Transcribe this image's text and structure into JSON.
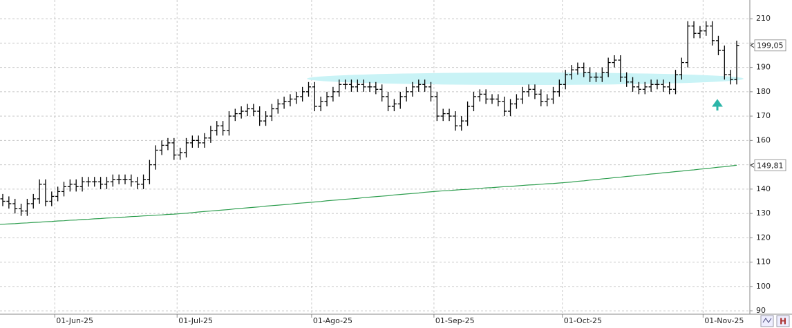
{
  "chart_data": {
    "type": "ohlc",
    "categories": [
      null,
      null,
      null,
      null,
      null,
      null,
      null,
      null,
      null,
      "01-Jun-25",
      null,
      null,
      null,
      null,
      null,
      null,
      null,
      null,
      null,
      null,
      null,
      null,
      null,
      null,
      null,
      null,
      null,
      null,
      null,
      "01-Jul-25",
      null,
      null,
      null,
      null,
      null,
      null,
      null,
      null,
      null,
      null,
      null,
      null,
      null,
      null,
      null,
      null,
      null,
      null,
      null,
      null,
      null,
      "01-Ago-25",
      null,
      null,
      null,
      null,
      null,
      null,
      null,
      null,
      null,
      null,
      null,
      null,
      null,
      null,
      null,
      null,
      null,
      null,
      null,
      "01-Sep-25",
      null,
      null,
      null,
      null,
      null,
      null,
      null,
      null,
      null,
      null,
      null,
      null,
      null,
      null,
      null,
      null,
      null,
      null,
      null,
      null,
      "01-Oct-25",
      null,
      null,
      null,
      null,
      null,
      null,
      null,
      null,
      null,
      null,
      null,
      null,
      null,
      null,
      null,
      null,
      null,
      null,
      null,
      null,
      null,
      null,
      "01-Nov-25",
      null,
      null,
      null,
      null,
      null
    ],
    "ohlc": {
      "color": "#000000",
      "open": [
        136,
        135,
        134,
        132,
        131,
        134,
        136,
        142,
        135,
        137,
        139,
        141,
        142,
        141,
        143,
        143,
        143,
        142,
        143,
        144,
        144,
        144,
        143,
        142,
        144,
        150,
        156,
        158,
        159,
        154,
        155,
        159,
        160,
        159,
        161,
        164,
        166,
        164,
        170,
        171,
        172,
        173,
        172,
        168,
        170,
        173,
        175,
        176,
        177,
        178,
        180,
        182,
        174,
        176,
        178,
        180,
        183,
        183,
        182,
        183,
        182,
        182,
        181,
        178,
        174,
        175,
        178,
        180,
        182,
        183,
        182,
        178,
        170,
        171,
        170,
        166,
        168,
        174,
        178,
        179,
        177,
        177,
        176,
        172,
        175,
        177,
        180,
        181,
        179,
        176,
        177,
        180,
        183,
        187,
        189,
        190,
        188,
        186,
        186,
        188,
        192,
        193,
        186,
        184,
        182,
        181,
        182,
        183,
        183,
        182,
        181,
        187,
        192,
        207,
        204,
        205,
        207,
        201,
        197,
        187,
        185
      ],
      "high": [
        138,
        137,
        136,
        134,
        136,
        138,
        144,
        144,
        139,
        141,
        143,
        144,
        144,
        145,
        145,
        145,
        145,
        145,
        146,
        146,
        146,
        146,
        145,
        146,
        152,
        158,
        160,
        161,
        161,
        157,
        161,
        162,
        162,
        163,
        166,
        168,
        168,
        172,
        173,
        174,
        175,
        175,
        174,
        172,
        175,
        177,
        178,
        179,
        180,
        182,
        184,
        184,
        178,
        180,
        182,
        185,
        185,
        185,
        185,
        185,
        184,
        184,
        183,
        180,
        177,
        180,
        182,
        184,
        185,
        185,
        184,
        180,
        173,
        173,
        172,
        170,
        176,
        180,
        181,
        181,
        179,
        179,
        178,
        177,
        179,
        182,
        183,
        183,
        181,
        179,
        182,
        185,
        189,
        191,
        192,
        192,
        190,
        188,
        190,
        194,
        195,
        195,
        188,
        186,
        184,
        184,
        185,
        185,
        185,
        184,
        189,
        194,
        209,
        209,
        207,
        209,
        209,
        203,
        199,
        189,
        201
      ],
      "low": [
        133,
        132,
        130,
        129,
        129,
        132,
        134,
        133,
        133,
        135,
        137,
        139,
        139,
        139,
        141,
        141,
        140,
        140,
        141,
        142,
        142,
        141,
        140,
        140,
        142,
        148,
        154,
        156,
        152,
        152,
        153,
        157,
        157,
        157,
        159,
        162,
        162,
        162,
        168,
        169,
        170,
        170,
        166,
        166,
        168,
        171,
        173,
        174,
        175,
        176,
        178,
        172,
        172,
        174,
        176,
        178,
        181,
        180,
        180,
        180,
        180,
        179,
        176,
        172,
        172,
        173,
        176,
        178,
        180,
        180,
        176,
        168,
        168,
        168,
        164,
        164,
        166,
        172,
        176,
        175,
        175,
        174,
        170,
        170,
        173,
        175,
        178,
        177,
        174,
        174,
        175,
        178,
        181,
        185,
        187,
        186,
        184,
        184,
        184,
        186,
        190,
        184,
        182,
        180,
        179,
        179,
        180,
        181,
        180,
        179,
        179,
        185,
        190,
        202,
        202,
        203,
        199,
        195,
        185,
        183,
        183
      ],
      "close": [
        135,
        134,
        132,
        131,
        134,
        136,
        142,
        135,
        137,
        139,
        141,
        142,
        141,
        143,
        143,
        143,
        142,
        143,
        144,
        144,
        144,
        143,
        142,
        144,
        150,
        156,
        158,
        159,
        154,
        155,
        159,
        160,
        159,
        161,
        164,
        166,
        164,
        170,
        171,
        172,
        173,
        172,
        168,
        170,
        173,
        175,
        176,
        177,
        178,
        180,
        182,
        174,
        176,
        178,
        180,
        183,
        183,
        182,
        183,
        182,
        182,
        181,
        178,
        174,
        175,
        178,
        180,
        182,
        183,
        182,
        178,
        170,
        171,
        170,
        166,
        168,
        174,
        178,
        179,
        177,
        177,
        176,
        172,
        175,
        177,
        180,
        181,
        179,
        176,
        177,
        180,
        183,
        187,
        189,
        190,
        188,
        186,
        186,
        188,
        192,
        193,
        186,
        184,
        182,
        181,
        182,
        183,
        183,
        182,
        181,
        187,
        192,
        207,
        204,
        205,
        207,
        201,
        197,
        187,
        185,
        199.05
      ]
    },
    "ma": {
      "color": "#2e9e4f",
      "values": [
        125.5,
        125.7,
        125.8,
        126.0,
        126.1,
        126.3,
        126.4,
        126.6,
        126.7,
        126.9,
        127.0,
        127.2,
        127.3,
        127.5,
        127.6,
        127.8,
        127.9,
        128.1,
        128.2,
        128.4,
        128.5,
        128.7,
        128.8,
        129.0,
        129.1,
        129.3,
        129.4,
        129.6,
        129.7,
        129.9,
        130.1,
        130.3,
        130.6,
        130.8,
        131.0,
        131.2,
        131.4,
        131.6,
        131.9,
        132.1,
        132.3,
        132.5,
        132.7,
        133.0,
        133.2,
        133.4,
        133.6,
        133.8,
        134.1,
        134.3,
        134.5,
        134.7,
        134.9,
        135.2,
        135.4,
        135.6,
        135.8,
        136.0,
        136.2,
        136.5,
        136.7,
        136.9,
        137.1,
        137.3,
        137.6,
        137.8,
        138.0,
        138.2,
        138.4,
        138.7,
        138.9,
        139.1,
        139.3,
        139.4,
        139.6,
        139.8,
        139.9,
        140.1,
        140.3,
        140.5,
        140.6,
        140.8,
        141.0,
        141.1,
        141.3,
        141.5,
        141.7,
        141.8,
        142.0,
        142.2,
        142.3,
        142.5,
        142.7,
        142.9,
        143.2,
        143.4,
        143.7,
        143.9,
        144.2,
        144.4,
        144.7,
        144.9,
        145.2,
        145.4,
        145.7,
        145.9,
        146.2,
        146.4,
        146.7,
        146.9,
        147.2,
        147.4,
        147.7,
        147.9,
        148.2,
        148.4,
        148.7,
        149.0,
        149.2,
        149.5,
        149.81
      ]
    },
    "price_markers": [
      {
        "value": 199.05,
        "label": "199,05"
      },
      {
        "value": 149.81,
        "label": "149,81"
      }
    ],
    "ylim": [
      88.6,
      217.7
    ],
    "yticks": [
      90,
      100,
      110,
      120,
      130,
      140,
      150,
      160,
      170,
      180,
      190,
      200,
      210
    ],
    "grid": true
  }
}
